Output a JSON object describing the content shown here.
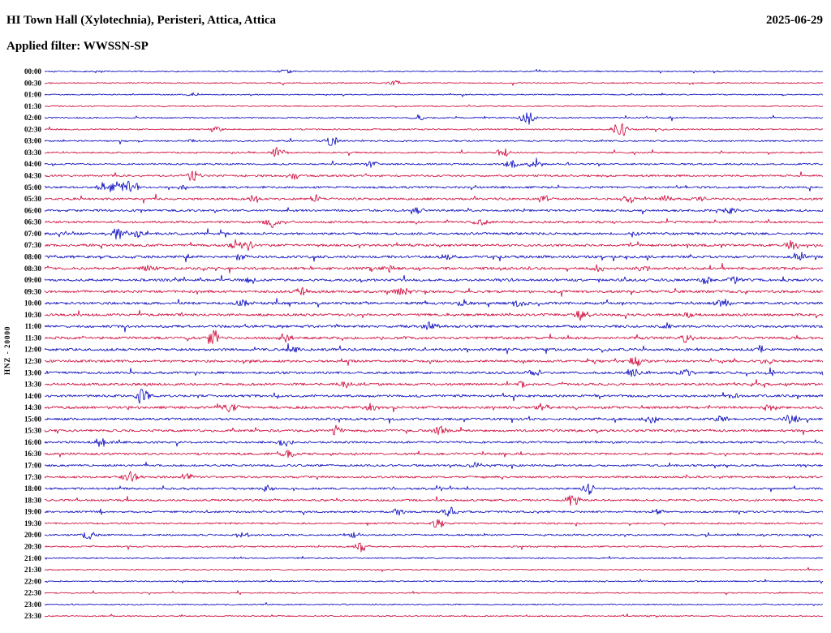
{
  "header": {
    "title": "HI Town Hall (Xylotechnia), Peristeri, Attica, Attica",
    "date": "2025-06-29",
    "filter": "Applied filter: WWSSN-SP"
  },
  "chart_data": {
    "type": "line",
    "subtype": "helicorder-seismogram",
    "title": "HI Town Hall (Xylotechnia), Peristeri, Attica, Attica",
    "date": "2025-06-29",
    "filter_label": "Applied filter: WWSSN-SP",
    "ylabel": "HNZ - 20000",
    "minutes_per_row": 30,
    "background": "#ffffff",
    "label_color": "#000000",
    "trace_colors": {
      "even": "#0000bb",
      "odd": "#cc0033"
    },
    "legend": "none",
    "grid": "off",
    "rows": [
      {
        "t": "00:00",
        "amp": 0.7,
        "ev": [
          [
            0.31,
            1.5
          ]
        ]
      },
      {
        "t": "00:30",
        "amp": 0.7,
        "ev": [
          [
            0.45,
            2
          ]
        ]
      },
      {
        "t": "01:00",
        "amp": 0.7,
        "ev": [
          [
            0.19,
            1.5
          ]
        ]
      },
      {
        "t": "01:30",
        "amp": 0.7,
        "ev": []
      },
      {
        "t": "02:00",
        "amp": 0.8,
        "ev": [
          [
            0.48,
            2
          ],
          [
            0.62,
            5
          ]
        ]
      },
      {
        "t": "02:30",
        "amp": 0.8,
        "ev": [
          [
            0.22,
            2
          ],
          [
            0.74,
            6
          ]
        ]
      },
      {
        "t": "03:00",
        "amp": 0.9,
        "ev": [
          [
            0.19,
            1.5
          ],
          [
            0.37,
            3.5
          ]
        ]
      },
      {
        "t": "03:30",
        "amp": 0.9,
        "ev": [
          [
            0.3,
            4
          ],
          [
            0.59,
            3
          ]
        ]
      },
      {
        "t": "04:00",
        "amp": 1.0,
        "ev": [
          [
            0.42,
            2.5
          ],
          [
            0.6,
            3
          ],
          [
            0.63,
            3
          ]
        ]
      },
      {
        "t": "04:30",
        "amp": 1.2,
        "ev": [
          [
            0.19,
            4
          ],
          [
            0.32,
            2.5
          ]
        ]
      },
      {
        "t": "05:00",
        "amp": 1.2,
        "ev": [
          [
            0.084,
            5,
            10
          ],
          [
            0.11,
            5,
            8
          ],
          [
            0.18,
            2
          ]
        ]
      },
      {
        "t": "05:30",
        "amp": 1.3,
        "ev": [
          [
            0.27,
            3
          ],
          [
            0.35,
            3.5
          ],
          [
            0.64,
            2.5
          ],
          [
            0.75,
            3
          ],
          [
            0.8,
            2.5
          ],
          [
            0.84,
            2
          ]
        ]
      },
      {
        "t": "06:00",
        "amp": 1.3,
        "ev": [
          [
            0.48,
            2
          ],
          [
            0.88,
            2.5
          ]
        ]
      },
      {
        "t": "06:30",
        "amp": 1.3,
        "ev": [
          [
            0.29,
            4.5
          ],
          [
            0.56,
            2
          ]
        ]
      },
      {
        "t": "07:00",
        "amp": 1.4,
        "ev": [
          [
            0.094,
            3.5,
            8
          ],
          [
            0.12,
            3
          ],
          [
            0.76,
            2
          ]
        ]
      },
      {
        "t": "07:30",
        "amp": 1.4,
        "ev": [
          [
            0.245,
            4
          ],
          [
            0.26,
            3.5
          ],
          [
            0.96,
            4
          ]
        ]
      },
      {
        "t": "08:00",
        "amp": 1.5,
        "ev": [
          [
            0.25,
            3
          ],
          [
            0.52,
            2.5
          ],
          [
            0.97,
            3
          ]
        ]
      },
      {
        "t": "08:30",
        "amp": 1.5,
        "ev": [
          [
            0.135,
            2.5
          ],
          [
            0.44,
            3
          ],
          [
            0.71,
            2.5
          ],
          [
            0.77,
            2.5
          ]
        ]
      },
      {
        "t": "09:00",
        "amp": 1.5,
        "ev": [
          [
            0.266,
            2.5
          ],
          [
            0.85,
            3
          ],
          [
            0.886,
            2.5
          ]
        ]
      },
      {
        "t": "09:30",
        "amp": 1.5,
        "ev": [
          [
            0.33,
            2.5
          ],
          [
            0.46,
            4
          ]
        ]
      },
      {
        "t": "10:00",
        "amp": 1.5,
        "ev": [
          [
            0.255,
            3.5
          ],
          [
            0.537,
            2.5
          ],
          [
            0.61,
            3
          ],
          [
            0.87,
            3.5
          ]
        ]
      },
      {
        "t": "10:30",
        "amp": 1.5,
        "ev": [
          [
            0.69,
            3.5
          ],
          [
            0.83,
            2.5
          ]
        ]
      },
      {
        "t": "11:00",
        "amp": 1.5,
        "ev": [
          [
            0.495,
            3
          ],
          [
            0.8,
            2.5
          ]
        ]
      },
      {
        "t": "11:30",
        "amp": 1.5,
        "ev": [
          [
            0.216,
            5
          ],
          [
            0.31,
            3
          ],
          [
            0.824,
            3
          ]
        ]
      },
      {
        "t": "12:00",
        "amp": 1.5,
        "ev": [
          [
            0.323,
            2.5
          ],
          [
            0.918,
            3
          ]
        ]
      },
      {
        "t": "12:30",
        "amp": 1.4,
        "ev": [
          [
            0.76,
            3.5
          ],
          [
            0.93,
            2.5
          ]
        ]
      },
      {
        "t": "13:00",
        "amp": 1.4,
        "ev": [
          [
            0.63,
            3
          ],
          [
            0.756,
            3.5
          ],
          [
            0.824,
            2.5
          ]
        ]
      },
      {
        "t": "13:30",
        "amp": 1.4,
        "ev": [
          [
            0.386,
            2
          ],
          [
            0.615,
            2
          ]
        ]
      },
      {
        "t": "14:00",
        "amp": 1.4,
        "ev": [
          [
            0.125,
            5.5
          ],
          [
            0.886,
            2
          ]
        ]
      },
      {
        "t": "14:30",
        "amp": 1.5,
        "ev": [
          [
            0.24,
            3.5
          ],
          [
            0.42,
            3
          ],
          [
            0.64,
            3
          ],
          [
            0.933,
            3.5
          ]
        ]
      },
      {
        "t": "15:00",
        "amp": 1.4,
        "ev": [
          [
            0.78,
            3
          ],
          [
            0.87,
            3
          ],
          [
            0.96,
            3.5
          ]
        ]
      },
      {
        "t": "15:30",
        "amp": 1.4,
        "ev": [
          [
            0.375,
            3.5
          ],
          [
            0.51,
            3
          ]
        ]
      },
      {
        "t": "16:00",
        "amp": 1.3,
        "ev": [
          [
            0.073,
            3.5
          ],
          [
            0.308,
            2.5
          ]
        ]
      },
      {
        "t": "16:30",
        "amp": 1.3,
        "ev": [
          [
            0.313,
            3
          ]
        ]
      },
      {
        "t": "17:00",
        "amp": 1.2,
        "ev": [
          [
            0.553,
            3
          ]
        ]
      },
      {
        "t": "17:30",
        "amp": 1.2,
        "ev": [
          [
            0.11,
            4.5
          ],
          [
            0.182,
            2.5
          ]
        ]
      },
      {
        "t": "18:00",
        "amp": 1.2,
        "ev": [
          [
            0.287,
            2.5
          ],
          [
            0.7,
            4
          ]
        ]
      },
      {
        "t": "18:30",
        "amp": 1.2,
        "ev": [
          [
            0.678,
            4.5
          ]
        ]
      },
      {
        "t": "19:00",
        "amp": 1.1,
        "ev": [
          [
            0.454,
            2.5
          ],
          [
            0.521,
            3.5
          ],
          [
            0.787,
            2.5
          ]
        ]
      },
      {
        "t": "19:30",
        "amp": 1.0,
        "ev": [
          [
            0.506,
            3.5
          ]
        ]
      },
      {
        "t": "20:00",
        "amp": 1.0,
        "ev": [
          [
            0.057,
            3
          ],
          [
            0.255,
            2.5
          ],
          [
            0.396,
            3
          ]
        ]
      },
      {
        "t": "20:30",
        "amp": 0.9,
        "ev": [
          [
            0.407,
            3.5
          ]
        ]
      },
      {
        "t": "21:00",
        "amp": 0.8,
        "ev": []
      },
      {
        "t": "21:30",
        "amp": 0.75,
        "ev": []
      },
      {
        "t": "22:00",
        "amp": 0.75,
        "ev": []
      },
      {
        "t": "22:30",
        "amp": 0.7,
        "ev": []
      },
      {
        "t": "23:00",
        "amp": 0.7,
        "ev": []
      },
      {
        "t": "23:30",
        "amp": 0.7,
        "ev": []
      }
    ]
  }
}
